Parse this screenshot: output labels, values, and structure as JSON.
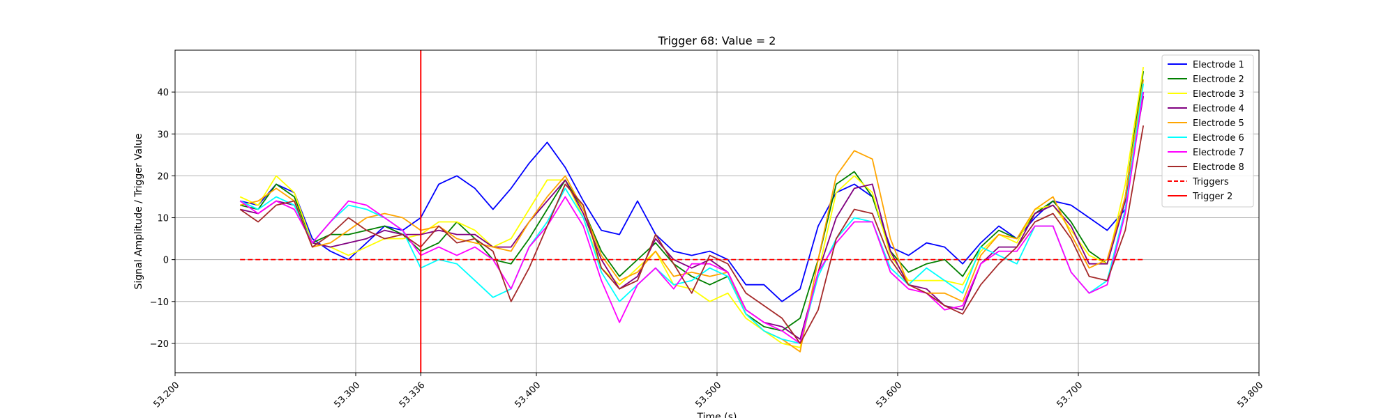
{
  "chart_data": {
    "type": "line",
    "title": "Trigger 68: Value = 2",
    "xlabel": "Time (s)",
    "ylabel": "Signal Amplitude / Trigger Value",
    "xlim": [
      53.2,
      53.8
    ],
    "ylim": [
      -27,
      50
    ],
    "x_ticks": [
      {
        "value": 53.2,
        "label": "53.200"
      },
      {
        "value": 53.3,
        "label": "53.300"
      },
      {
        "value": 53.336,
        "label": "53.336"
      },
      {
        "value": 53.4,
        "label": "53.400"
      },
      {
        "value": 53.5,
        "label": "53.500"
      },
      {
        "value": 53.6,
        "label": "53.600"
      },
      {
        "value": 53.7,
        "label": "53.700"
      },
      {
        "value": 53.8,
        "label": "53.800"
      }
    ],
    "y_ticks": [
      -20,
      -10,
      0,
      10,
      20,
      30,
      40
    ],
    "grid": true,
    "legend_position": "top-right",
    "x": [
      53.236,
      53.246,
      53.256,
      53.266,
      53.276,
      53.286,
      53.296,
      53.306,
      53.316,
      53.326,
      53.336,
      53.346,
      53.356,
      53.366,
      53.376,
      53.386,
      53.396,
      53.406,
      53.416,
      53.426,
      53.436,
      53.446,
      53.456,
      53.466,
      53.476,
      53.486,
      53.496,
      53.506,
      53.516,
      53.526,
      53.536,
      53.546,
      53.556,
      53.566,
      53.576,
      53.586,
      53.596,
      53.606,
      53.616,
      53.626,
      53.636,
      53.646,
      53.656,
      53.666,
      53.676,
      53.686,
      53.696,
      53.706,
      53.716,
      53.726,
      53.736
    ],
    "series": [
      {
        "name": "Electrode 1",
        "color": "#0000ff",
        "style": "solid",
        "values": [
          14,
          13,
          18,
          16,
          5,
          2,
          0,
          4,
          8,
          7,
          10,
          18,
          20,
          17,
          12,
          17,
          23,
          28,
          22,
          14,
          7,
          6,
          14,
          6,
          2,
          1,
          2,
          0,
          -6,
          -6,
          -10,
          -7,
          8,
          16,
          18,
          15,
          3,
          1,
          4,
          3,
          -1,
          4,
          8,
          5,
          10,
          14,
          13,
          10,
          7,
          12,
          40
        ]
      },
      {
        "name": "Electrode 2",
        "color": "#008000",
        "style": "solid",
        "values": [
          13,
          12,
          18,
          15,
          4,
          6,
          6,
          7,
          8,
          6,
          2,
          4,
          9,
          5,
          0,
          -1,
          5,
          12,
          19,
          12,
          2,
          -4,
          0,
          4,
          -1,
          -4,
          -6,
          -4,
          -13,
          -16,
          -17,
          -14,
          0,
          18,
          21,
          15,
          2,
          -3,
          -1,
          0,
          -4,
          3,
          7,
          5,
          11,
          14,
          9,
          2,
          -1,
          15,
          45
        ]
      },
      {
        "name": "Electrode 3",
        "color": "#ffff00",
        "style": "solid",
        "values": [
          15,
          13,
          20,
          16,
          4,
          3,
          1,
          3,
          5,
          5,
          6,
          9,
          9,
          7,
          3,
          5,
          12,
          19,
          19,
          10,
          -2,
          -6,
          -2,
          2,
          -6,
          -7,
          -10,
          -8,
          -14,
          -17,
          -20,
          -21,
          -3,
          16,
          20,
          16,
          1,
          -5,
          -5,
          -5,
          -6,
          2,
          6,
          4,
          12,
          13,
          7,
          1,
          -1,
          18,
          46
        ]
      },
      {
        "name": "Electrode 4",
        "color": "#800080",
        "style": "solid",
        "values": [
          12,
          11,
          14,
          13,
          4,
          3,
          4,
          5,
          7,
          6,
          6,
          7,
          6,
          6,
          3,
          3,
          9,
          14,
          19,
          11,
          0,
          -7,
          -4,
          5,
          0,
          -2,
          0,
          -3,
          -12,
          -15,
          -16,
          -19,
          -3,
          10,
          17,
          18,
          2,
          -6,
          -7,
          -11,
          -12,
          -1,
          3,
          3,
          11,
          13,
          8,
          -1,
          -1,
          14,
          39
        ]
      },
      {
        "name": "Electrode 5",
        "color": "#ffa500",
        "style": "solid",
        "values": [
          13,
          14,
          17,
          14,
          3,
          4,
          7,
          10,
          11,
          10,
          7,
          8,
          5,
          4,
          3,
          2,
          9,
          15,
          20,
          12,
          1,
          -5,
          -3,
          2,
          -4,
          -3,
          -4,
          -3,
          -13,
          -17,
          -19,
          -22,
          0,
          20,
          26,
          24,
          5,
          -6,
          -8,
          -8,
          -10,
          1,
          6,
          5,
          12,
          15,
          6,
          -2,
          0,
          15,
          43
        ]
      },
      {
        "name": "Electrode 6",
        "color": "#00ffff",
        "style": "solid",
        "values": [
          14,
          12,
          15,
          13,
          4,
          9,
          13,
          12,
          10,
          7,
          -2,
          0,
          -1,
          -5,
          -9,
          -7,
          3,
          9,
          17,
          10,
          -3,
          -10,
          -6,
          -2,
          -6,
          -5,
          -2,
          -4,
          -13,
          -17,
          -19,
          -20,
          -4,
          5,
          10,
          9,
          -2,
          -6,
          -2,
          -5,
          -8,
          3,
          1,
          -1,
          8,
          8,
          -3,
          -8,
          -5,
          12,
          42
        ]
      },
      {
        "name": "Electrode 7",
        "color": "#ff00ff",
        "style": "solid",
        "values": [
          14,
          11,
          14,
          12,
          4,
          9,
          14,
          13,
          10,
          7,
          1,
          3,
          1,
          3,
          0,
          -7,
          3,
          8,
          15,
          8,
          -5,
          -15,
          -6,
          -2,
          -7,
          -1,
          -1,
          -3,
          -12,
          -15,
          -17,
          -20,
          -3,
          4,
          9,
          9,
          -3,
          -7,
          -8,
          -12,
          -11,
          -1,
          2,
          2,
          8,
          8,
          -3,
          -8,
          -6,
          11,
          40
        ]
      },
      {
        "name": "Electrode 8",
        "color": "#a52a2a",
        "style": "solid",
        "values": [
          12,
          9,
          13,
          14,
          3,
          6,
          10,
          7,
          5,
          6,
          3,
          8,
          4,
          5,
          2,
          -10,
          -2,
          8,
          18,
          13,
          -2,
          -7,
          -5,
          6,
          -1,
          -8,
          1,
          -1,
          -8,
          -11,
          -14,
          -20,
          -12,
          5,
          12,
          11,
          0,
          -6,
          -8,
          -11,
          -13,
          -6,
          -1,
          3,
          9,
          11,
          5,
          -4,
          -5,
          7,
          32
        ]
      },
      {
        "name": "Triggers",
        "color": "#ff0000",
        "style": "dashed",
        "x": [
          53.236,
          53.736
        ],
        "values": [
          0,
          0
        ]
      }
    ],
    "vlines": [
      {
        "name": "Trigger 2",
        "x": 53.336,
        "color": "#ff0000"
      }
    ]
  }
}
